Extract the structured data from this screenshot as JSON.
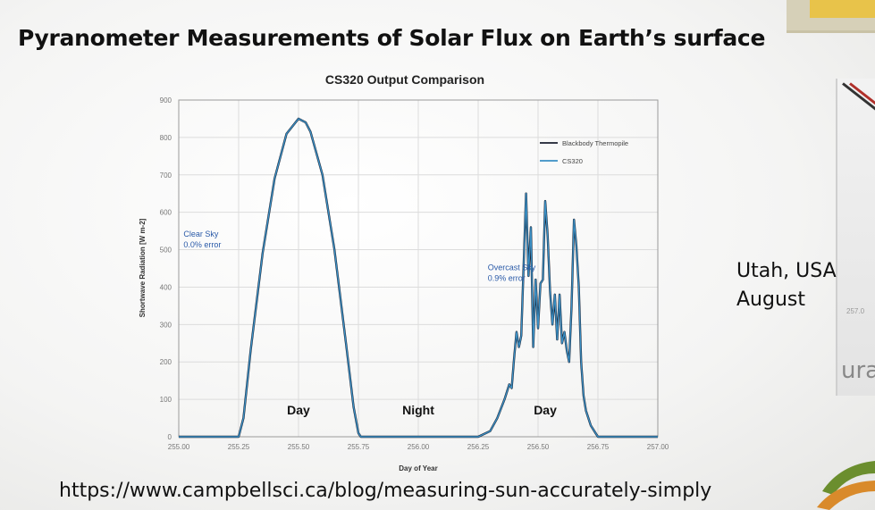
{
  "slide": {
    "title": "Pyranometer Measurements of Solar Flux on Earth’s surface",
    "location_line1": "Utah, USA",
    "location_line2": "August",
    "url": "https://www.campbellsci.ca/blog/measuring-sun-accurately-simply",
    "photo_tick": "257.0",
    "photo_text": "ura"
  },
  "colors": {
    "series_blackbody": "#1a1f2e",
    "series_cs320": "#3a8fc4",
    "annotation": "#2a5aa8",
    "logo_green": "#6b8e2e",
    "logo_orange": "#d98a2b"
  },
  "chart_data": {
    "type": "line",
    "title": "CS320 Output Comparison",
    "xlabel": "Day of Year",
    "ylabel": "Shortwave Radiation [W m-2]",
    "xlim": [
      255.0,
      257.0
    ],
    "ylim": [
      0,
      900
    ],
    "x_ticks": [
      "255.00",
      "255.25",
      "255.50",
      "255.75",
      "256.00",
      "256.25",
      "256.50",
      "256.75",
      "257.00"
    ],
    "y_ticks": [
      "0",
      "100",
      "200",
      "300",
      "400",
      "500",
      "600",
      "700",
      "800",
      "900"
    ],
    "grid": true,
    "legend_position": "top-right",
    "annotations": [
      {
        "text": [
          "Clear Sky",
          "0.0% error"
        ],
        "x": 255.02,
        "y": 535
      },
      {
        "text": [
          "Overcast Sky",
          "0.9% error"
        ],
        "x": 256.29,
        "y": 445
      }
    ],
    "period_labels": [
      {
        "text": "Day",
        "x": 255.5,
        "y": 60
      },
      {
        "text": "Night",
        "x": 256.0,
        "y": 60
      },
      {
        "text": "Day",
        "x": 256.53,
        "y": 60
      }
    ],
    "series": [
      {
        "name": "Blackbody Thermopile",
        "x": [
          255.0,
          255.25,
          255.27,
          255.3,
          255.35,
          255.4,
          255.45,
          255.5,
          255.53,
          255.55,
          255.6,
          255.65,
          255.7,
          255.73,
          255.75,
          255.76,
          256.0,
          256.25,
          256.3,
          256.33,
          256.36,
          256.38,
          256.39,
          256.4,
          256.41,
          256.42,
          256.43,
          256.45,
          256.46,
          256.47,
          256.48,
          256.49,
          256.5,
          256.51,
          256.52,
          256.53,
          256.54,
          256.55,
          256.56,
          256.57,
          256.58,
          256.59,
          256.6,
          256.61,
          256.62,
          256.63,
          256.64,
          256.65,
          256.66,
          256.67,
          256.68,
          256.69,
          256.7,
          256.72,
          256.74,
          256.75,
          256.76,
          257.0
        ],
        "y": [
          0,
          0,
          50,
          230,
          490,
          690,
          810,
          850,
          840,
          815,
          700,
          500,
          240,
          80,
          10,
          0,
          0,
          0,
          15,
          50,
          100,
          140,
          130,
          210,
          280,
          240,
          270,
          650,
          430,
          560,
          240,
          420,
          290,
          410,
          420,
          630,
          540,
          390,
          300,
          380,
          260,
          380,
          250,
          280,
          230,
          200,
          350,
          580,
          510,
          400,
          200,
          110,
          70,
          30,
          10,
          0,
          0,
          0
        ]
      },
      {
        "name": "CS320",
        "x": [
          255.0,
          255.25,
          255.27,
          255.3,
          255.35,
          255.4,
          255.45,
          255.5,
          255.53,
          255.55,
          255.6,
          255.65,
          255.7,
          255.73,
          255.75,
          255.76,
          256.0,
          256.25,
          256.3,
          256.33,
          256.36,
          256.38,
          256.39,
          256.4,
          256.41,
          256.42,
          256.43,
          256.45,
          256.46,
          256.47,
          256.48,
          256.49,
          256.5,
          256.51,
          256.52,
          256.53,
          256.54,
          256.55,
          256.56,
          256.57,
          256.58,
          256.59,
          256.6,
          256.61,
          256.62,
          256.63,
          256.64,
          256.65,
          256.66,
          256.67,
          256.68,
          256.69,
          256.7,
          256.72,
          256.74,
          256.75,
          256.76,
          257.0
        ],
        "y": [
          0,
          0,
          50,
          230,
          490,
          690,
          810,
          850,
          840,
          815,
          700,
          500,
          240,
          80,
          10,
          0,
          0,
          0,
          15,
          50,
          100,
          140,
          130,
          210,
          280,
          240,
          270,
          650,
          430,
          560,
          240,
          420,
          290,
          410,
          420,
          630,
          540,
          390,
          300,
          380,
          260,
          380,
          250,
          280,
          230,
          200,
          350,
          580,
          510,
          400,
          200,
          110,
          70,
          30,
          10,
          0,
          0,
          0
        ]
      }
    ]
  }
}
